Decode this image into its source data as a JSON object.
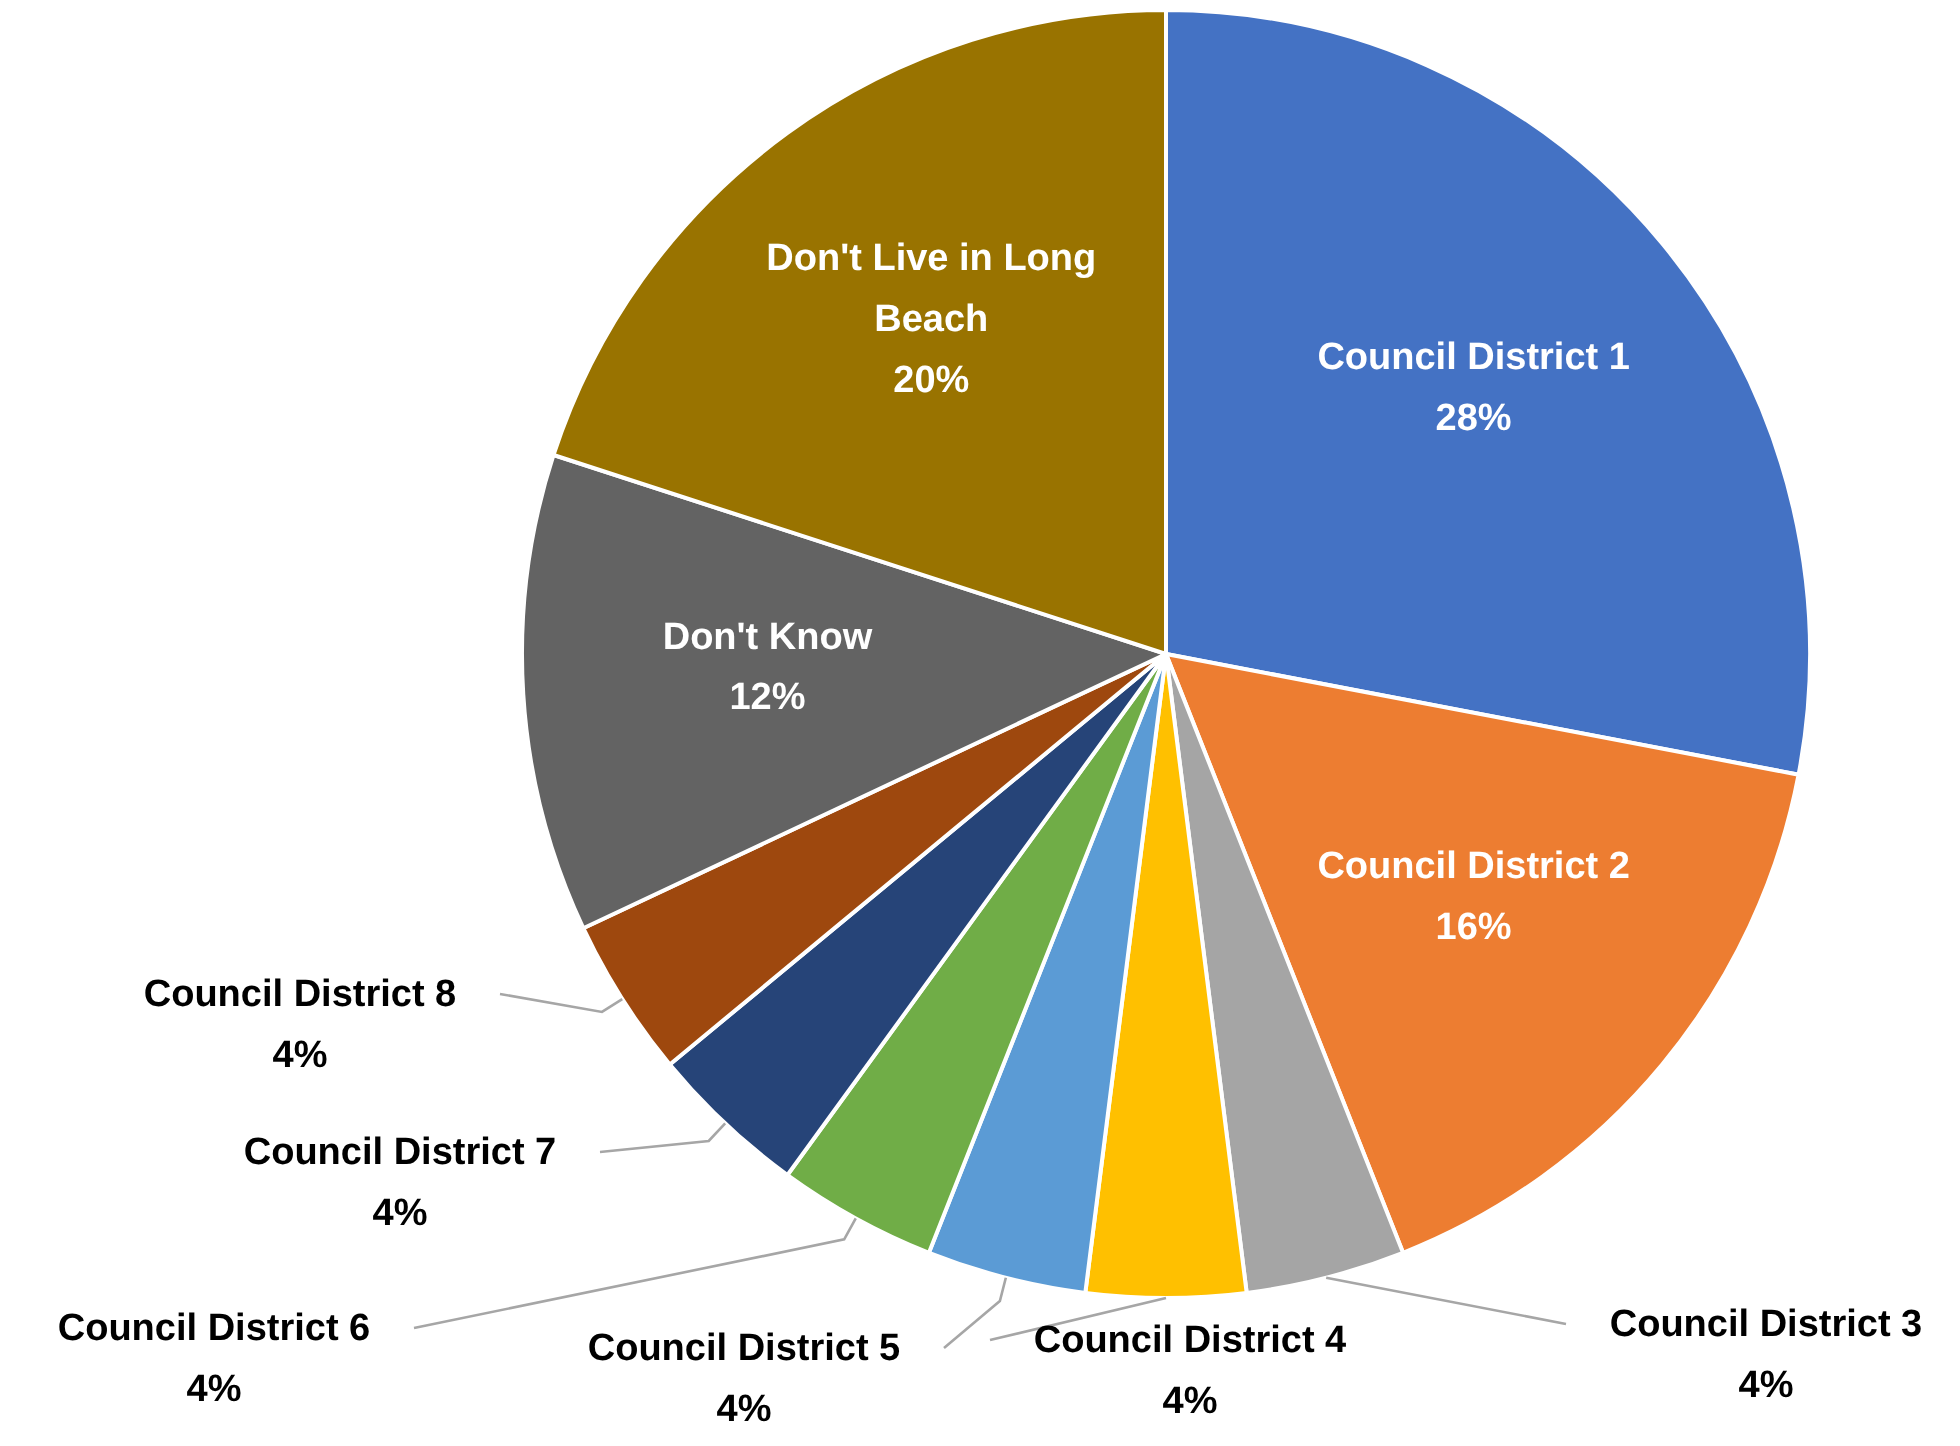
{
  "chart_data": {
    "type": "pie",
    "categories": [
      "Council District 1",
      "Council District 2",
      "Council District 3",
      "Council District 4",
      "Council District 5",
      "Council District 6",
      "Council District 7",
      "Council District 8",
      "Don't Know",
      "Don't Live in Long Beach"
    ],
    "values": [
      28,
      16,
      4,
      4,
      4,
      4,
      4,
      4,
      12,
      20
    ],
    "colors": [
      "#4472c4",
      "#ed7d31",
      "#a5a5a5",
      "#ffc000",
      "#5b9bd5",
      "#70ad47",
      "#264478",
      "#9e480e",
      "#636363",
      "#997300"
    ],
    "value_labels": [
      "28%",
      "16%",
      "4%",
      "4%",
      "4%",
      "4%",
      "4%",
      "4%",
      "12%",
      "20%"
    ]
  }
}
